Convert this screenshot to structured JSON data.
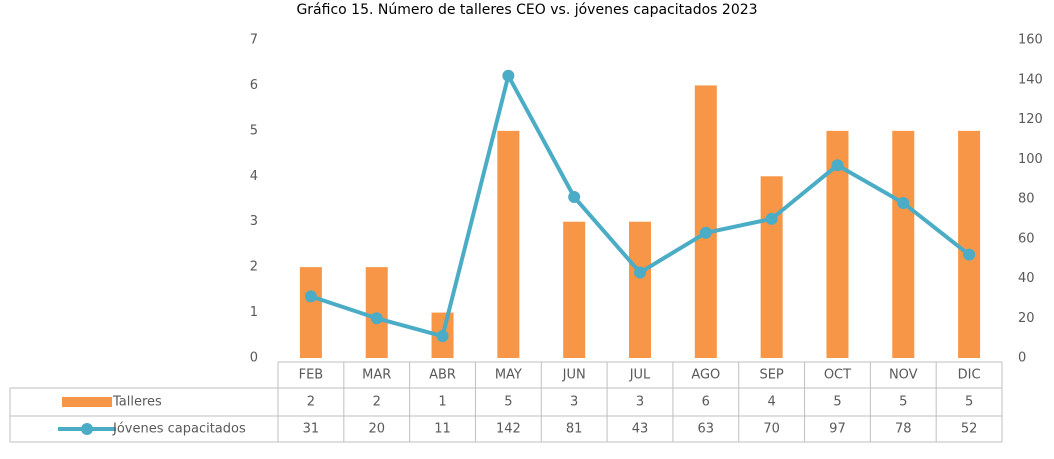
{
  "chart_data": {
    "type": "bar",
    "title": "Gráfico 15. Número de talleres CEO vs. jóvenes capacitados 2023",
    "categories": [
      "FEB",
      "MAR",
      "ABR",
      "MAY",
      "JUN",
      "JUL",
      "AGO",
      "SEP",
      "OCT",
      "NOV",
      "DIC"
    ],
    "series": [
      {
        "name": "Talleres",
        "type": "bar",
        "color": "#f79646",
        "values": [
          2,
          2,
          1,
          5,
          3,
          3,
          6,
          4,
          5,
          5,
          5
        ]
      },
      {
        "name": "Jóvenes capacitados",
        "type": "line",
        "axis": "y2",
        "color": "#4bacc6",
        "values": [
          31,
          20,
          11,
          142,
          81,
          43,
          63,
          70,
          97,
          78,
          52
        ]
      }
    ],
    "ylim": [
      0,
      7
    ],
    "yticks": [
      0,
      1,
      2,
      3,
      4,
      5,
      6,
      7
    ],
    "y2lim": [
      0,
      160
    ],
    "y2ticks": [
      0,
      20,
      40,
      60,
      80,
      100,
      120,
      140,
      160
    ],
    "data_table": true
  }
}
